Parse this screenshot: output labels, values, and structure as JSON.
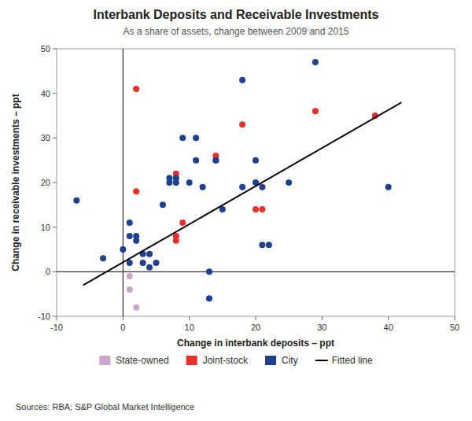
{
  "chart_data": {
    "type": "scatter",
    "title": "Interbank Deposits and Receivable Investments",
    "subtitle": "As a share of assets, change between 2009 and 2015",
    "xlabel": "Change in interbank deposits – ppt",
    "ylabel": "Change in receivable investments – ppt",
    "source": "Sources:  RBA; S&P Global Market Intelligence",
    "xlim": [
      -10,
      50
    ],
    "ylim": [
      -10,
      50
    ],
    "xticks": [
      -10,
      0,
      10,
      20,
      30,
      40,
      50
    ],
    "yticks": [
      -10,
      0,
      10,
      20,
      30,
      40,
      50
    ],
    "grid": false,
    "legend": "bottom",
    "reference_lines": {
      "x": 0,
      "y": 0
    },
    "series": [
      {
        "name": "State-owned",
        "type": "scatter",
        "color": "#c9a8cb",
        "x": [
          1,
          1,
          2
        ],
        "values": [
          -1,
          -4,
          -8
        ]
      },
      {
        "name": "Joint-stock",
        "type": "scatter",
        "color": "#e8302a",
        "x": [
          2,
          2,
          8,
          8,
          8,
          9,
          14,
          14,
          18,
          20,
          21,
          29,
          38
        ],
        "values": [
          41,
          18,
          22,
          8,
          7,
          11,
          25,
          26,
          33,
          14,
          14,
          36,
          35
        ]
      },
      {
        "name": "City",
        "type": "scatter",
        "color": "#1f3f8f",
        "x": [
          -7,
          -3,
          0,
          1,
          1,
          1,
          2,
          2,
          3,
          3,
          4,
          4,
          5,
          6,
          7,
          7,
          8,
          8,
          9,
          10,
          11,
          11,
          12,
          13,
          13,
          14,
          15,
          18,
          18,
          20,
          20,
          21,
          21,
          22,
          25,
          29,
          40
        ],
        "values": [
          16,
          3,
          5,
          2,
          8,
          11,
          7,
          8,
          2,
          4,
          4,
          1,
          2,
          15,
          21,
          20,
          20,
          21,
          30,
          20,
          25,
          30,
          19,
          0,
          -6,
          25,
          14,
          19,
          43,
          20,
          25,
          19,
          6,
          6,
          20,
          47,
          19
        ]
      },
      {
        "name": "Fitted line",
        "type": "line",
        "color": "#000000",
        "x": [
          -6,
          42
        ],
        "values": [
          -3,
          38
        ]
      }
    ]
  }
}
